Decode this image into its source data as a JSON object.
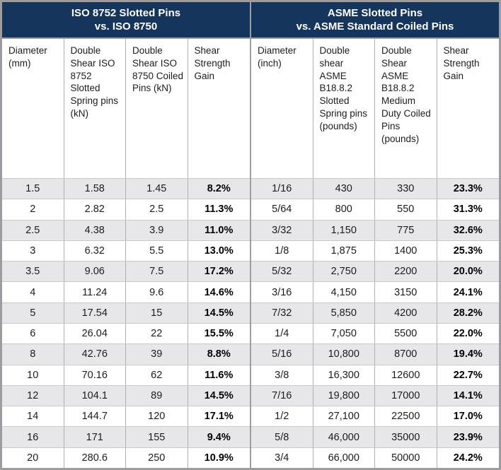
{
  "chart_data": [
    {
      "type": "table",
      "title_line1": "ISO 8752 Slotted Pins",
      "title_line2": "vs. ISO 8750",
      "columns": [
        "Diameter (mm)",
        "Double Shear ISO 8752 Slotted Spring pins (kN)",
        "Double Shear ISO 8750 Coiled Pins (kN)",
        "Shear Strength Gain"
      ],
      "rows": [
        [
          "1.5",
          "1.58",
          "1.45",
          "8.2%"
        ],
        [
          "2",
          "2.82",
          "2.5",
          "11.3%"
        ],
        [
          "2.5",
          "4.38",
          "3.9",
          "11.0%"
        ],
        [
          "3",
          "6.32",
          "5.5",
          "13.0%"
        ],
        [
          "3.5",
          "9.06",
          "7.5",
          "17.2%"
        ],
        [
          "4",
          "11.24",
          "9.6",
          "14.6%"
        ],
        [
          "5",
          "17.54",
          "15",
          "14.5%"
        ],
        [
          "6",
          "26.04",
          "22",
          "15.5%"
        ],
        [
          "8",
          "42.76",
          "39",
          "8.8%"
        ],
        [
          "10",
          "70.16",
          "62",
          "11.6%"
        ],
        [
          "12",
          "104.1",
          "89",
          "14.5%"
        ],
        [
          "14",
          "144.7",
          "120",
          "17.1%"
        ],
        [
          "16",
          "171",
          "155",
          "9.4%"
        ],
        [
          "20",
          "280.6",
          "250",
          "10.9%"
        ]
      ]
    },
    {
      "type": "table",
      "title_line1": "ASME Slotted Pins",
      "title_line2": "vs. ASME Standard Coiled Pins",
      "columns": [
        "Diameter (inch)",
        "Double shear ASME B18.8.2 Slotted Spring pins (pounds)",
        "Double Shear ASME B18.8.2 Medium Duty Coiled Pins (pounds)",
        "Shear Strength Gain"
      ],
      "rows": [
        [
          "1/16",
          "430",
          "330",
          "23.3%"
        ],
        [
          "5/64",
          "800",
          "550",
          "31.3%"
        ],
        [
          "3/32",
          "1,150",
          "775",
          "32.6%"
        ],
        [
          "1/8",
          "1,875",
          "1400",
          "25.3%"
        ],
        [
          "5/32",
          "2,750",
          "2200",
          "20.0%"
        ],
        [
          "3/16",
          "4,150",
          "3150",
          "24.1%"
        ],
        [
          "7/32",
          "5,850",
          "4200",
          "28.2%"
        ],
        [
          "1/4",
          "7,050",
          "5500",
          "22.0%"
        ],
        [
          "5/16",
          "10,800",
          "8700",
          "19.4%"
        ],
        [
          "3/8",
          "16,300",
          "12600",
          "22.7%"
        ],
        [
          "7/16",
          "19,800",
          "17000",
          "14.1%"
        ],
        [
          "1/2",
          "27,100",
          "22500",
          "17.0%"
        ],
        [
          "5/8",
          "46,000",
          "35000",
          "23.9%"
        ],
        [
          "3/4",
          "66,000",
          "50000",
          "24.2%"
        ]
      ]
    }
  ],
  "colors": {
    "title_bg": "#16355d",
    "title_text": "#ffffff",
    "stripe": "#e7e7e9",
    "grid_line": "#b1b1b5",
    "outer_border": "#9c9ca1",
    "text": "#1c1c1c"
  }
}
